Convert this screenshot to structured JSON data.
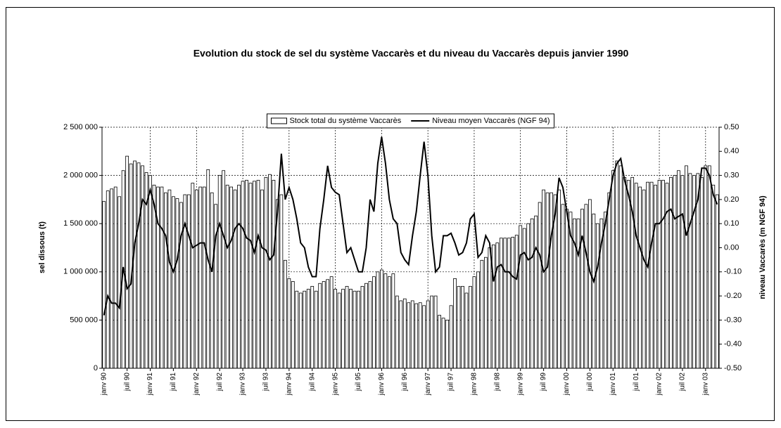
{
  "chart_data": {
    "type": "bar_line",
    "title": "Evolution du stock de sel du système Vaccarès et du niveau du Vaccarès depuis janvier 1990",
    "y_label": "sel dissous (t)",
    "y2_label": "niveau Vaccarès (m NGF 94)",
    "legend": "top",
    "grid": true,
    "categories": [
      "janv 90",
      null,
      null,
      null,
      null,
      null,
      "juil 90",
      null,
      null,
      null,
      null,
      null,
      "janv 91",
      null,
      null,
      null,
      null,
      null,
      "juil 91",
      null,
      null,
      null,
      null,
      null,
      "janv 92",
      null,
      null,
      null,
      null,
      null,
      "juil 92",
      null,
      null,
      null,
      null,
      null,
      "janv 93",
      null,
      null,
      null,
      null,
      null,
      "juil 93",
      null,
      null,
      null,
      null,
      null,
      "janv 94",
      null,
      null,
      null,
      null,
      null,
      "juil 94",
      null,
      null,
      null,
      null,
      null,
      "janv 95",
      null,
      null,
      null,
      null,
      null,
      "juil 95",
      null,
      null,
      null,
      null,
      null,
      "janv 96",
      null,
      null,
      null,
      null,
      null,
      "juil 96",
      null,
      null,
      null,
      null,
      null,
      "janv 97",
      null,
      null,
      null,
      null,
      null,
      "juil 97",
      null,
      null,
      null,
      null,
      null,
      "janv 98",
      null,
      null,
      null,
      null,
      null,
      "juil 98",
      null,
      null,
      null,
      null,
      null,
      "janv 99",
      null,
      null,
      null,
      null,
      null,
      "juil 99",
      null,
      null,
      null,
      null,
      null,
      "janv 00",
      null,
      null,
      null,
      null,
      null,
      "juil 00",
      null,
      null,
      null,
      null,
      null,
      "janv 01",
      null,
      null,
      null,
      null,
      null,
      "juil 01",
      null,
      null,
      null,
      null,
      null,
      "janv 02",
      null,
      null,
      null,
      null,
      null,
      "juil 02",
      null,
      null,
      null,
      null,
      null,
      "janv 03",
      null,
      null,
      null
    ],
    "series": [
      {
        "name": "Stock total du système Vaccarès",
        "kind": "bar",
        "color": "#ffffff",
        "stroke": "#000000",
        "values": [
          1730000,
          1840000,
          1860000,
          1880000,
          1780000,
          2050000,
          2200000,
          2120000,
          2150000,
          2130000,
          2100000,
          2030000,
          2000000,
          1900000,
          1880000,
          1880000,
          1820000,
          1850000,
          1780000,
          1760000,
          1720000,
          1800000,
          1800000,
          1920000,
          1850000,
          1880000,
          1880000,
          2060000,
          1820000,
          1700000,
          2000000,
          2050000,
          1900000,
          1880000,
          1850000,
          1900000,
          1940000,
          1950000,
          1920000,
          1940000,
          1950000,
          1850000,
          1980000,
          2010000,
          1950000,
          1750000,
          1800000,
          1120000,
          930000,
          900000,
          800000,
          780000,
          800000,
          820000,
          850000,
          800000,
          880000,
          900000,
          920000,
          950000,
          820000,
          780000,
          820000,
          850000,
          820000,
          800000,
          800000,
          850000,
          880000,
          900000,
          950000,
          1000000,
          1020000,
          980000,
          950000,
          980000,
          750000,
          700000,
          720000,
          680000,
          700000,
          670000,
          680000,
          650000,
          700000,
          750000,
          750000,
          550000,
          520000,
          500000,
          650000,
          930000,
          850000,
          850000,
          780000,
          850000,
          950000,
          1000000,
          1120000,
          1150000,
          1250000,
          1280000,
          1300000,
          1350000,
          1350000,
          1350000,
          1360000,
          1380000,
          1480000,
          1450000,
          1500000,
          1550000,
          1580000,
          1720000,
          1850000,
          1820000,
          1820000,
          1800000,
          1850000,
          1700000,
          1650000,
          1620000,
          1550000,
          1550000,
          1650000,
          1700000,
          1750000,
          1600000,
          1500000,
          1550000,
          1620000,
          1820000,
          2050000,
          2150000,
          2100000,
          1980000,
          1950000,
          1980000,
          1920000,
          1880000,
          1850000,
          1930000,
          1930000,
          1900000,
          1950000,
          1950000,
          1920000,
          1980000,
          2000000,
          2050000,
          2000000,
          2100000,
          2020000,
          2000000,
          2020000,
          1980000,
          2100000,
          2100000,
          1900000,
          1800000
        ]
      },
      {
        "name": "Niveau moyen Vaccarès (NGF 94)",
        "kind": "line",
        "axis": "y2",
        "color": "#000000",
        "values": [
          -0.28,
          -0.2,
          -0.23,
          -0.23,
          -0.25,
          -0.08,
          -0.17,
          -0.15,
          0.02,
          0.1,
          0.2,
          0.18,
          0.24,
          0.18,
          0.1,
          0.08,
          0.05,
          -0.06,
          -0.1,
          -0.05,
          0.05,
          0.1,
          0.05,
          0.0,
          0.01,
          0.02,
          0.02,
          -0.05,
          -0.1,
          0.05,
          0.1,
          0.05,
          0.0,
          0.03,
          0.08,
          0.1,
          0.08,
          0.04,
          0.03,
          -0.02,
          0.05,
          0.0,
          -0.01,
          -0.05,
          -0.03,
          0.15,
          0.39,
          0.2,
          0.25,
          0.2,
          0.12,
          0.02,
          0.0,
          -0.08,
          -0.12,
          -0.12,
          0.08,
          0.2,
          0.34,
          0.25,
          0.23,
          0.22,
          0.1,
          -0.02,
          0.0,
          -0.05,
          -0.1,
          -0.1,
          0.0,
          0.2,
          0.15,
          0.35,
          0.46,
          0.35,
          0.2,
          0.12,
          0.1,
          -0.02,
          -0.05,
          -0.07,
          0.05,
          0.15,
          0.3,
          0.44,
          0.3,
          0.05,
          -0.1,
          -0.08,
          0.05,
          0.05,
          0.06,
          0.02,
          -0.03,
          -0.02,
          0.02,
          0.12,
          0.14,
          -0.04,
          -0.02,
          0.05,
          0.02,
          -0.14,
          -0.08,
          -0.07,
          -0.1,
          -0.1,
          -0.12,
          -0.13,
          -0.03,
          -0.02,
          -0.05,
          -0.04,
          0.0,
          -0.03,
          -0.1,
          -0.08,
          0.05,
          0.14,
          0.29,
          0.25,
          0.15,
          0.05,
          0.02,
          -0.03,
          0.05,
          -0.02,
          -0.1,
          -0.14,
          -0.08,
          0.02,
          0.1,
          0.2,
          0.3,
          0.35,
          0.37,
          0.28,
          0.22,
          0.15,
          0.05,
          0.0,
          -0.05,
          -0.08,
          0.02,
          0.1,
          0.1,
          0.12,
          0.15,
          0.16,
          0.12,
          0.13,
          0.14,
          0.05,
          0.1,
          0.15,
          0.2,
          0.33,
          0.33,
          0.3,
          0.22,
          0.18
        ]
      }
    ],
    "ylim": [
      0,
      2500000
    ],
    "yticks": [
      0,
      {
        "value": 500000,
        "label": "500 000"
      },
      {
        "value": 1000000,
        "label": "1 000 000"
      },
      {
        "value": 1500000,
        "label": "1 500 000"
      },
      {
        "value": 2000000,
        "label": "2 000 000"
      },
      {
        "value": 2500000,
        "label": "2 500 000"
      }
    ],
    "y2lim": [
      -0.5,
      0.5
    ],
    "y2ticks": [
      {
        "value": -0.5,
        "label": "-0.50"
      },
      {
        "value": -0.4,
        "label": "-0.40"
      },
      {
        "value": -0.3,
        "label": "-0.30"
      },
      {
        "value": -0.2,
        "label": "-0.20"
      },
      {
        "value": -0.1,
        "label": "-0.10"
      },
      {
        "value": 0,
        "label": "0.00"
      },
      {
        "value": 0.1,
        "label": "0.10"
      },
      {
        "value": 0.2,
        "label": "0.20"
      },
      {
        "value": 0.3,
        "label": "0.30"
      },
      {
        "value": 0.4,
        "label": "0.40"
      },
      {
        "value": 0.5,
        "label": "0.50"
      }
    ]
  }
}
